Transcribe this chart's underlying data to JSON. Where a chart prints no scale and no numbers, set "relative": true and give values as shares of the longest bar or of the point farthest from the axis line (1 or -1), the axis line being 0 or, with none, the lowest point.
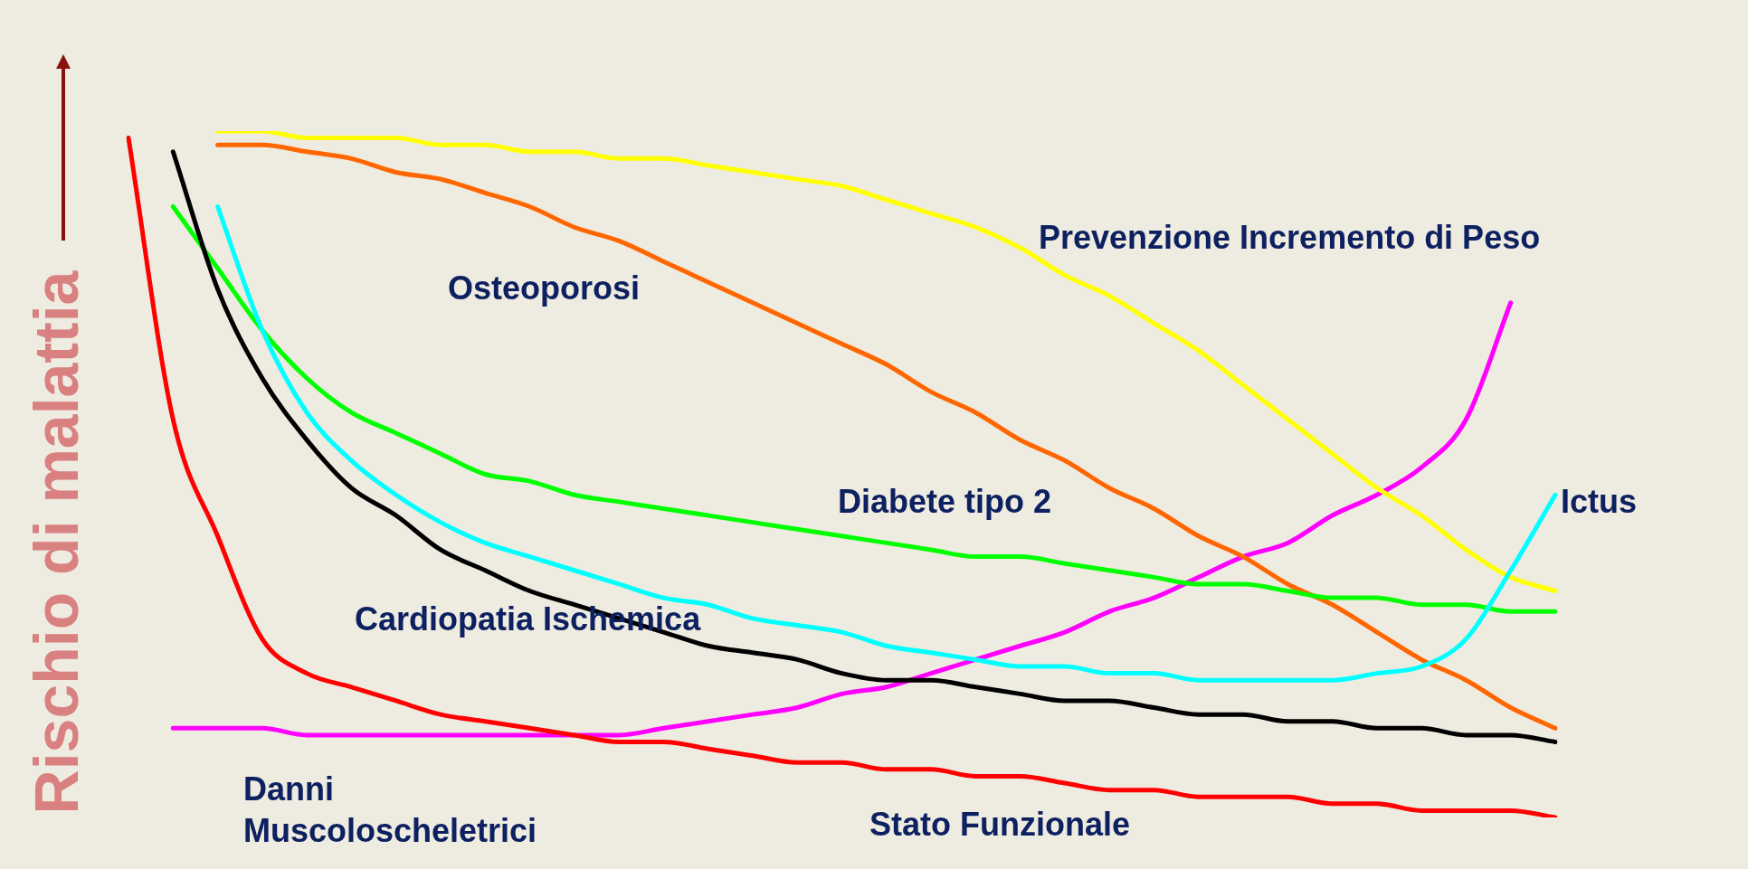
{
  "chart_data": {
    "type": "line",
    "relative": true,
    "ylabel": "Rischio di malattia",
    "marker": "none",
    "line_style": "solid",
    "legend": false,
    "tick_labels": false,
    "categories": [
      null,
      null,
      null,
      null,
      null,
      null,
      null,
      null,
      null,
      null,
      null,
      null,
      null,
      null,
      null,
      null,
      null,
      null,
      null,
      null,
      null,
      null,
      null,
      null,
      null,
      null,
      null,
      null,
      null,
      null,
      null,
      null,
      null
    ],
    "series": [
      {
        "color": "#ff0000",
        "values": [
          0.99,
          0.58,
          0.41,
          0.26,
          0.21,
          0.19,
          0.17,
          0.15,
          0.14,
          0.13,
          0.12,
          0.11,
          0.11,
          0.1,
          0.09,
          0.08,
          0.08,
          0.07,
          0.07,
          0.06,
          0.06,
          0.05,
          0.04,
          0.04,
          0.03,
          0.03,
          0.03,
          0.02,
          0.02,
          0.01,
          0.01,
          0.01,
          0
        ]
      },
      {
        "color": "#000000",
        "values": [
          null,
          0.97,
          0.77,
          0.64,
          0.55,
          0.48,
          0.44,
          0.39,
          0.36,
          0.33,
          0.31,
          0.29,
          0.27,
          0.25,
          0.24,
          0.23,
          0.21,
          0.2,
          0.2,
          0.19,
          0.18,
          0.17,
          0.17,
          0.16,
          0.15,
          0.15,
          0.14,
          0.14,
          0.13,
          0.13,
          0.12,
          0.12,
          0.11
        ]
      },
      {
        "color": "#00ffff",
        "values": [
          null,
          null,
          0.89,
          0.71,
          0.59,
          0.52,
          0.47,
          0.43,
          0.4,
          0.38,
          0.36,
          0.34,
          0.32,
          0.31,
          0.29,
          0.28,
          0.27,
          0.25,
          0.24,
          0.23,
          0.22,
          0.22,
          0.21,
          0.21,
          0.2,
          0.2,
          0.2,
          0.2,
          0.21,
          0.22,
          0.26,
          0.36,
          0.47
        ]
      },
      {
        "color": "#00ff00",
        "values": [
          null,
          0.89,
          0.8,
          0.71,
          0.64,
          0.59,
          0.56,
          0.53,
          0.5,
          0.49,
          0.47,
          0.46,
          0.45,
          0.44,
          0.43,
          0.42,
          0.41,
          0.4,
          0.39,
          0.38,
          0.38,
          0.37,
          0.36,
          0.35,
          0.34,
          0.34,
          0.33,
          0.32,
          0.32,
          0.31,
          0.31,
          0.3,
          0.3
        ]
      },
      {
        "color": "#ff6600",
        "values": [
          null,
          null,
          0.98,
          0.98,
          0.97,
          0.96,
          0.94,
          0.93,
          0.91,
          0.89,
          0.86,
          0.84,
          0.81,
          0.78,
          0.75,
          0.72,
          0.69,
          0.66,
          0.62,
          0.59,
          0.55,
          0.52,
          0.48,
          0.45,
          0.41,
          0.38,
          0.34,
          0.31,
          0.27,
          0.23,
          0.2,
          0.16,
          0.13
        ]
      },
      {
        "color": "#ffff00",
        "values": [
          null,
          null,
          1,
          1,
          0.99,
          0.99,
          0.99,
          0.98,
          0.98,
          0.97,
          0.97,
          0.96,
          0.96,
          0.95,
          0.94,
          0.93,
          0.92,
          0.9,
          0.88,
          0.86,
          0.83,
          0.79,
          0.76,
          0.72,
          0.68,
          0.63,
          0.58,
          0.53,
          0.48,
          0.44,
          0.39,
          0.35,
          0.33
        ]
      },
      {
        "color": "#ff00ff",
        "values": [
          null,
          0.13,
          0.13,
          0.13,
          0.12,
          0.12,
          0.12,
          0.12,
          0.12,
          0.12,
          0.12,
          0.12,
          0.13,
          0.14,
          0.15,
          0.16,
          0.18,
          0.19,
          0.21,
          0.23,
          0.25,
          0.27,
          0.3,
          0.32,
          0.35,
          0.38,
          0.4,
          0.44,
          0.47,
          0.51,
          0.58,
          0.75,
          null
        ]
      }
    ],
    "annotations": [
      "Osteoporosi",
      "Prevenzione Incremento di Peso",
      "Diabete tipo 2",
      "Ictus",
      "Cardiopatia Ischemica",
      "Danni\nMuscoloscheletrici",
      "Stato Funzionale"
    ]
  }
}
